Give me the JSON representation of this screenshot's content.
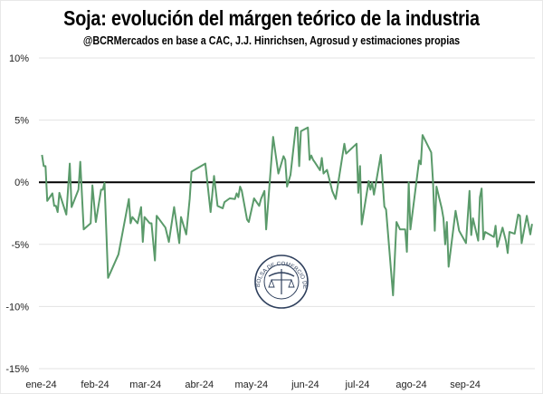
{
  "chart_data": {
    "type": "line",
    "title": "Soja: evolución del márgen teórico de la industria",
    "subtitle": "@BCRMercados en base a CAC, J.J. Hinrichsen, Agrosud y estimaciones propias",
    "xlabel": "",
    "ylabel": "",
    "ylim": [
      -15,
      10
    ],
    "xlim": [
      "2024-01-01",
      "2024-10-15"
    ],
    "y_ticks": [
      10,
      5,
      0,
      -5,
      -10,
      -15
    ],
    "y_tick_labels": [
      "10%",
      "5%",
      "0%",
      "-5%",
      "-10%",
      "-15%"
    ],
    "x_ticks": [
      "2024-01-01",
      "2024-02-01",
      "2024-03-01",
      "2024-04-01",
      "2024-05-01",
      "2024-06-01",
      "2024-07-01",
      "2024-08-01",
      "2024-09-01"
    ],
    "x_tick_labels": [
      "ene-24",
      "feb-24",
      "mar-24",
      "abr-24",
      "may-24",
      "jun-24",
      "jul-24",
      "ago-24",
      "sep-24"
    ],
    "grid": true,
    "zero_line": true,
    "line_color": "#5a9a6a",
    "x": [
      "2024-01-02",
      "2024-01-03",
      "2024-01-04",
      "2024-01-05",
      "2024-01-08",
      "2024-01-09",
      "2024-01-10",
      "2024-01-11",
      "2024-01-12",
      "2024-01-16",
      "2024-01-18",
      "2024-01-19",
      "2024-01-23",
      "2024-01-24",
      "2024-01-26",
      "2024-01-30",
      "2024-01-31",
      "2024-02-02",
      "2024-02-05",
      "2024-02-06",
      "2024-02-07",
      "2024-02-09",
      "2024-02-15",
      "2024-02-21",
      "2024-02-22",
      "2024-02-23",
      "2024-02-26",
      "2024-02-28",
      "2024-02-29",
      "2024-03-01",
      "2024-03-04",
      "2024-03-05",
      "2024-03-07",
      "2024-03-08",
      "2024-03-13",
      "2024-03-15",
      "2024-03-18",
      "2024-03-21",
      "2024-03-22",
      "2024-03-25",
      "2024-03-27",
      "2024-03-28",
      "2024-04-05",
      "2024-04-08",
      "2024-04-10",
      "2024-04-12",
      "2024-04-15",
      "2024-04-16",
      "2024-04-19",
      "2024-04-22",
      "2024-04-23",
      "2024-04-24",
      "2024-04-25",
      "2024-04-26",
      "2024-04-29",
      "2024-04-30",
      "2024-05-03",
      "2024-05-06",
      "2024-05-07",
      "2024-05-09",
      "2024-05-10",
      "2024-05-14",
      "2024-05-17",
      "2024-05-20",
      "2024-05-21",
      "2024-05-22",
      "2024-05-24",
      "2024-05-27",
      "2024-05-28",
      "2024-05-29",
      "2024-05-30",
      "2024-06-03",
      "2024-06-04",
      "2024-06-05",
      "2024-06-06",
      "2024-06-07",
      "2024-06-10",
      "2024-06-11",
      "2024-06-12",
      "2024-06-14",
      "2024-06-17",
      "2024-06-19",
      "2024-06-24",
      "2024-06-25",
      "2024-07-01",
      "2024-07-02",
      "2024-07-03",
      "2024-07-04",
      "2024-07-08",
      "2024-07-09",
      "2024-07-10",
      "2024-07-11",
      "2024-07-15",
      "2024-07-17",
      "2024-07-18",
      "2024-07-22",
      "2024-07-24",
      "2024-07-26",
      "2024-07-29",
      "2024-07-30",
      "2024-07-31",
      "2024-08-01",
      "2024-08-06",
      "2024-08-07",
      "2024-08-08",
      "2024-08-13",
      "2024-08-14",
      "2024-08-15",
      "2024-08-16",
      "2024-08-19",
      "2024-08-20",
      "2024-08-21",
      "2024-08-22",
      "2024-08-23",
      "2024-08-27",
      "2024-08-29",
      "2024-09-02",
      "2024-09-04",
      "2024-09-05",
      "2024-09-06",
      "2024-09-09",
      "2024-09-10",
      "2024-09-11",
      "2024-09-12",
      "2024-09-13",
      "2024-09-18",
      "2024-09-19",
      "2024-09-20",
      "2024-09-23",
      "2024-09-25",
      "2024-09-26",
      "2024-09-27",
      "2024-09-30",
      "2024-10-02",
      "2024-10-03",
      "2024-10-04",
      "2024-10-07",
      "2024-10-09",
      "2024-10-10"
    ],
    "series": [
      {
        "values": [
          2.2,
          1.3,
          1.3,
          -1.5,
          -0.9,
          -1.9,
          -1.9,
          -2.4,
          -0.85,
          -2.6,
          1.5,
          -2.0,
          -0.6,
          1.65,
          -3.8,
          -3.3,
          -0.25,
          -3.2,
          -0.6,
          -0.6,
          -0.05,
          -7.7,
          -5.8,
          -1.35,
          -3.3,
          -2.8,
          -3.3,
          -2.0,
          -4.8,
          -2.8,
          -3.3,
          -3.3,
          -6.3,
          -2.7,
          -3.65,
          -4.8,
          -2.0,
          -4.9,
          -2.8,
          -4.2,
          -1.35,
          0.85,
          1.5,
          -2.4,
          0.5,
          -1.9,
          -2.1,
          -1.6,
          -1.3,
          -1.35,
          -0.9,
          -1.2,
          -0.35,
          -0.7,
          -3.0,
          -3.2,
          -1.3,
          -1.9,
          -1.35,
          -0.7,
          -3.8,
          3.65,
          0.7,
          2.1,
          1.8,
          -0.35,
          0.6,
          4.4,
          4.4,
          1.3,
          4.1,
          4.4,
          1.8,
          2.15,
          1.8,
          1.6,
          0.97,
          1.95,
          0.7,
          1.0,
          -0.7,
          -1.35,
          3.1,
          2.3,
          3.1,
          -0.85,
          1.3,
          -3.4,
          0.1,
          -0.6,
          0.0,
          -1.0,
          2.2,
          -1.95,
          -2.2,
          -9.1,
          -3.2,
          -3.8,
          -3.8,
          -5.6,
          0.0,
          -3.8,
          1.75,
          1.45,
          3.8,
          2.4,
          0.0,
          -3.9,
          -0.35,
          -2.1,
          -2.9,
          -5.0,
          -3.2,
          -6.8,
          -2.3,
          -3.9,
          -4.9,
          -0.7,
          -4.25,
          -2.9,
          -4.7,
          -1.2,
          -0.5,
          -4.6,
          -4.0,
          -4.4,
          -3.5,
          -5.2,
          -3.65,
          -4.75,
          -5.7,
          -4.0,
          -4.15,
          -2.6,
          -2.7,
          -4.9,
          -2.7,
          -4.2,
          -3.35
        ]
      }
    ]
  },
  "watermark": {
    "text": "BOLSA DE COMERCIO DE ROSARIO",
    "color": "#2e3f5c"
  }
}
